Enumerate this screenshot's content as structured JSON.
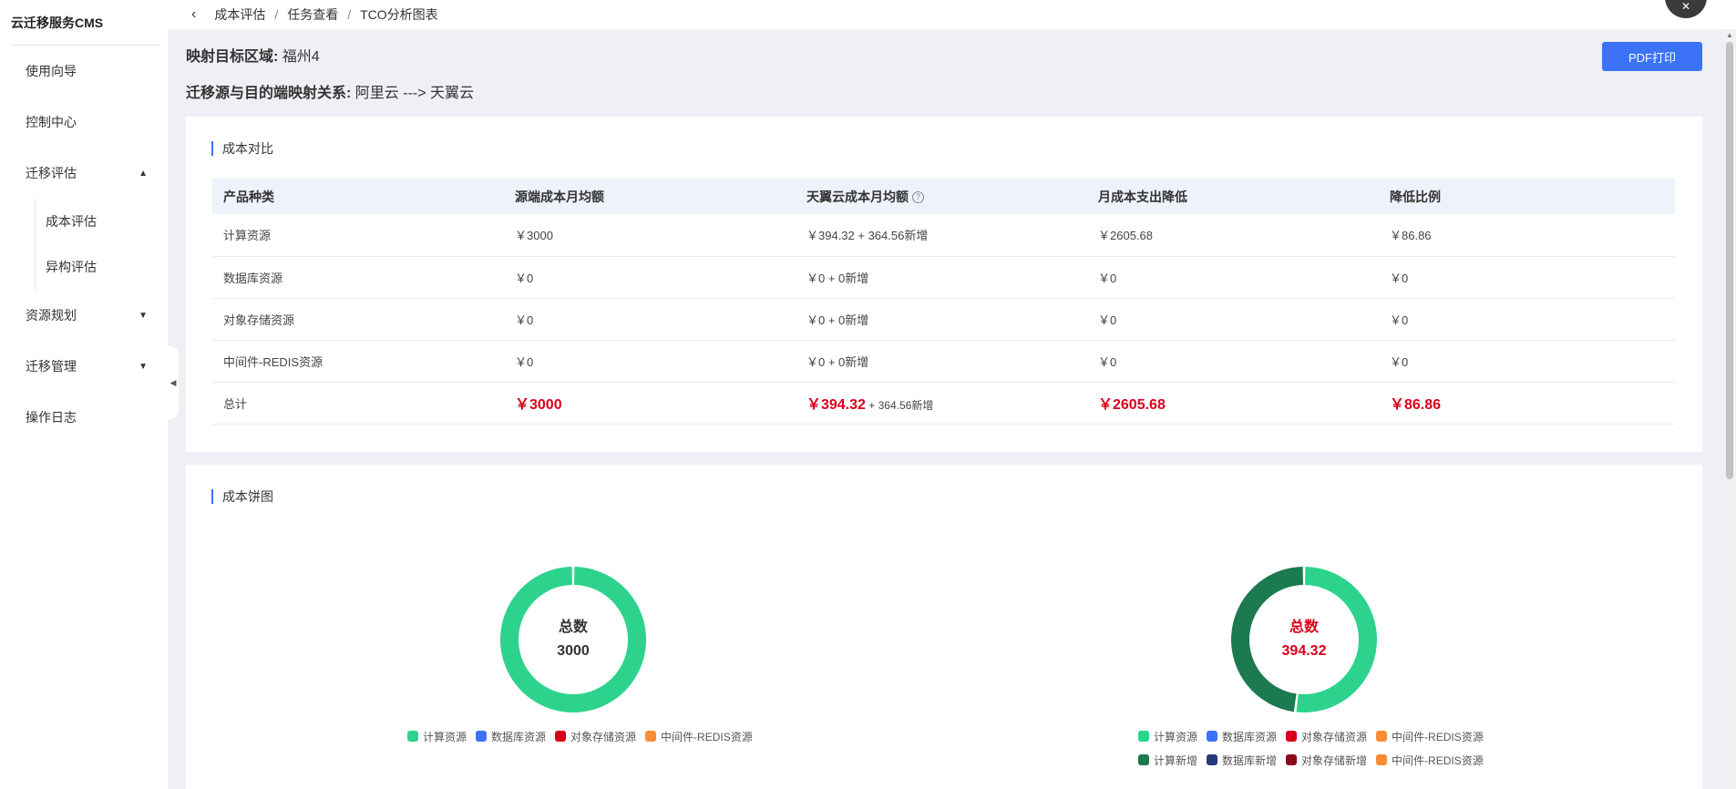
{
  "app_title": "云迁移服务CMS",
  "sidebar": {
    "items": [
      {
        "label": "使用向导"
      },
      {
        "label": "控制中心"
      },
      {
        "label": "迁移评估",
        "caret": "▲"
      },
      {
        "label": "资源规划",
        "caret": "▼"
      },
      {
        "label": "迁移管理",
        "caret": "▼"
      },
      {
        "label": "操作日志"
      }
    ],
    "sub_items": [
      {
        "label": "成本评估"
      },
      {
        "label": "异构评估"
      }
    ],
    "collapse_icon": "◀"
  },
  "breadcrumb": {
    "back_icon": "‹",
    "items": [
      "成本评估",
      "任务查看",
      "TCO分析图表"
    ],
    "separator": "/"
  },
  "info": {
    "region_label": "映射目标区域:",
    "region_value": "福州4",
    "mapping_label": "迁移源与目的端映射关系:",
    "mapping_value": "阿里云 ---> 天翼云"
  },
  "pdf_button": "PDF打印",
  "cost_compare": {
    "title": "成本对比",
    "headers": [
      "产品种类",
      "源端成本月均额",
      "天翼云成本月均额",
      "月成本支出降低",
      "降低比例"
    ],
    "help_icon": "?",
    "rows": [
      [
        "计算资源",
        "￥3000",
        "￥394.32 + 364.56新增",
        "￥2605.68",
        "￥86.86"
      ],
      [
        "数据库资源",
        "￥0",
        "￥0 + 0新增",
        "￥0",
        "￥0"
      ],
      [
        "对象存储资源",
        "￥0",
        "￥0 + 0新增",
        "￥0",
        "￥0"
      ],
      [
        "中间件-REDIS资源",
        "￥0",
        "￥0 + 0新增",
        "￥0",
        "￥0"
      ]
    ],
    "total": {
      "label": "总计",
      "source": "￥3000",
      "target": "￥394.32",
      "target_extra": " + 364.56新增",
      "reduce": "￥2605.68",
      "ratio": "￥86.86"
    }
  },
  "pie_section": {
    "title": "成本饼图",
    "left": {
      "center_label": "总数",
      "center_value": "3000",
      "center_color": "#333333",
      "legend": [
        {
          "name": "计算资源",
          "color": "#2dd38c"
        },
        {
          "name": "数据库资源",
          "color": "#3b72f6"
        },
        {
          "name": "对象存储资源",
          "color": "#d9001b"
        },
        {
          "name": "中间件-REDIS资源",
          "color": "#f98c34"
        }
      ]
    },
    "right": {
      "center_label": "总数",
      "center_value": "394.32",
      "center_color": "#d9001b",
      "legend": [
        {
          "name": "计算资源",
          "color": "#2dd38c"
        },
        {
          "name": "数据库资源",
          "color": "#3b72f6"
        },
        {
          "name": "对象存储资源",
          "color": "#d9001b"
        },
        {
          "name": "中间件-REDIS资源",
          "color": "#f98c34"
        },
        {
          "name": "计算新增",
          "color": "#1b7a4f"
        },
        {
          "name": "数据库新增",
          "color": "#243a7a"
        },
        {
          "name": "对象存储新增",
          "color": "#8a0a1a"
        },
        {
          "name": "中间件-REDIS资源",
          "color": "#f98c34"
        }
      ]
    }
  },
  "chart_data": [
    {
      "type": "pie",
      "labels": [
        "计算资源",
        "数据库资源",
        "对象存储资源",
        "中间件-REDIS资源"
      ],
      "values": [
        3000,
        0,
        0,
        0
      ],
      "colors": [
        "#2dd38c",
        "#3b72f6",
        "#d9001b",
        "#f98c34"
      ]
    },
    {
      "type": "pie",
      "labels": [
        "计算资源",
        "数据库资源",
        "对象存储资源",
        "中间件-REDIS资源",
        "计算新增",
        "数据库新增",
        "对象存储新增",
        "中间件-REDIS资源"
      ],
      "values": [
        394.32,
        0,
        0,
        0,
        364.56,
        0,
        0,
        0
      ],
      "colors": [
        "#2dd38c",
        "#3b72f6",
        "#d9001b",
        "#f98c34",
        "#1b7a4f",
        "#243a7a",
        "#8a0a1a",
        "#f98c34"
      ]
    }
  ]
}
